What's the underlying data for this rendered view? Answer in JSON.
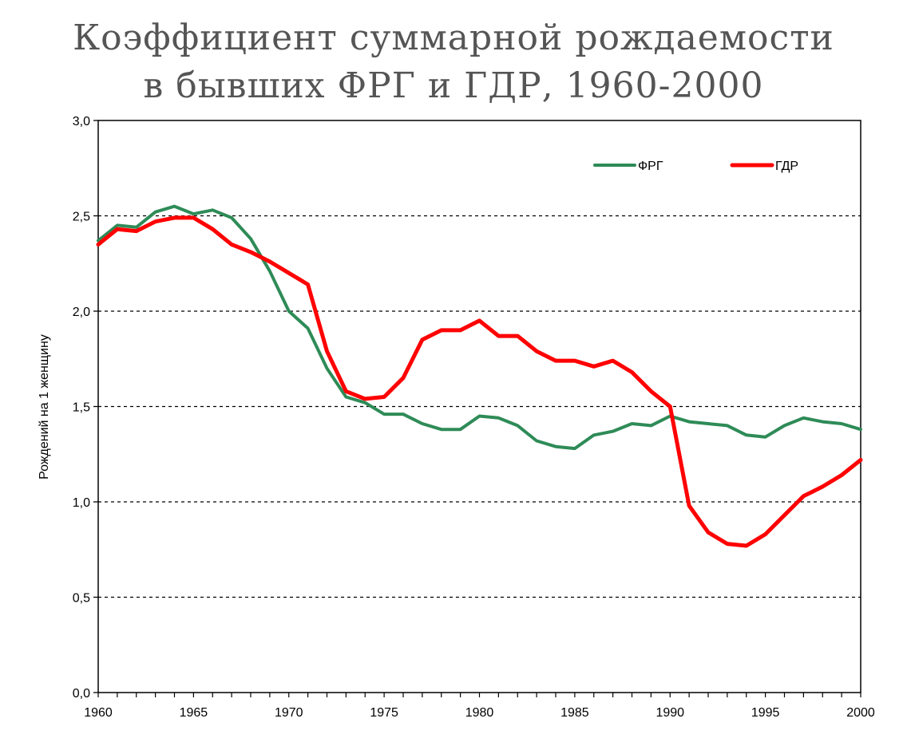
{
  "chart_data": {
    "type": "line",
    "title_line1": "Коэффициент суммарной рождаемости",
    "title_line2": "в бывших ФРГ и ГДР, 1960-2000",
    "xlabel": "",
    "ylabel": "Рождений на 1 женщину",
    "xlim": [
      1960,
      2000
    ],
    "ylim": [
      0,
      3
    ],
    "x_ticks": [
      "1960",
      "1965",
      "1970",
      "1975",
      "1980",
      "1985",
      "1990",
      "1995",
      "2000"
    ],
    "y_ticks": [
      "0,0",
      "0,5",
      "1,0",
      "1,5",
      "2,0",
      "2,5",
      "3,0"
    ],
    "grid": "horizontal-dashed",
    "legend_position": "top-right",
    "x": [
      1960,
      1961,
      1962,
      1963,
      1964,
      1965,
      1966,
      1967,
      1968,
      1969,
      1970,
      1971,
      1972,
      1973,
      1974,
      1975,
      1976,
      1977,
      1978,
      1979,
      1980,
      1981,
      1982,
      1983,
      1984,
      1985,
      1986,
      1987,
      1988,
      1989,
      1990,
      1991,
      1992,
      1993,
      1994,
      1995,
      1996,
      1997,
      1998,
      1999,
      2000
    ],
    "series": [
      {
        "name": "ФРГ",
        "color": "#2e8b57",
        "values": [
          2.37,
          2.45,
          2.44,
          2.52,
          2.55,
          2.51,
          2.53,
          2.49,
          2.38,
          2.21,
          2.0,
          1.91,
          1.7,
          1.55,
          1.52,
          1.46,
          1.46,
          1.41,
          1.38,
          1.38,
          1.45,
          1.44,
          1.4,
          1.32,
          1.29,
          1.28,
          1.35,
          1.37,
          1.41,
          1.4,
          1.45,
          1.42,
          1.41,
          1.4,
          1.35,
          1.34,
          1.4,
          1.44,
          1.42,
          1.41,
          1.38
        ]
      },
      {
        "name": "ГДР",
        "color": "#ff0000",
        "values": [
          2.35,
          2.43,
          2.42,
          2.47,
          2.49,
          2.49,
          2.43,
          2.35,
          2.31,
          2.26,
          2.2,
          2.14,
          1.79,
          1.58,
          1.54,
          1.55,
          1.65,
          1.85,
          1.9,
          1.9,
          1.95,
          1.87,
          1.87,
          1.79,
          1.74,
          1.74,
          1.71,
          1.74,
          1.68,
          1.58,
          1.5,
          0.98,
          0.84,
          0.78,
          0.77,
          0.83,
          0.93,
          1.03,
          1.08,
          1.14,
          1.22
        ]
      }
    ]
  }
}
